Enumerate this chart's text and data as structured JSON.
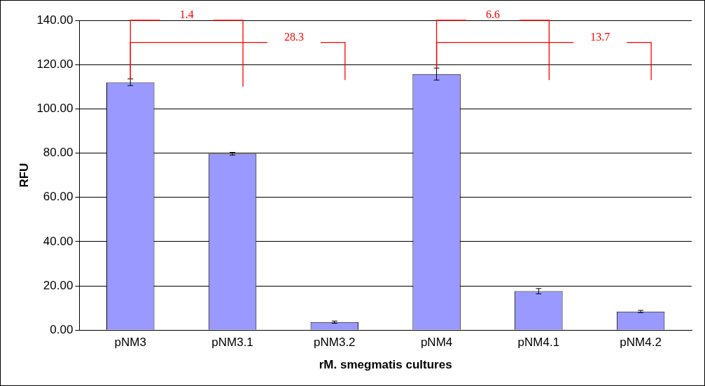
{
  "chart_data": {
    "type": "bar",
    "xlabel": "rM. smegmatis cultures",
    "ylabel": "RFU",
    "categories": [
      "pNM3",
      "pNM3.1",
      "pNM3.2",
      "pNM4",
      "pNM4.1",
      "pNM4.2"
    ],
    "values": [
      112,
      79.7,
      3.6,
      115.7,
      17.6,
      8.4
    ],
    "errors": [
      1.5,
      0.6,
      0.5,
      2.7,
      1.2,
      0.5
    ],
    "color": "#9999ff",
    "ylim": [
      0,
      140
    ],
    "yticks": [
      {
        "value": 0,
        "label": "0.00"
      },
      {
        "value": 20,
        "label": "20.00"
      },
      {
        "value": 40,
        "label": "40.00"
      },
      {
        "value": 60,
        "label": "60.00"
      },
      {
        "value": 80,
        "label": "80.00"
      },
      {
        "value": 100,
        "label": "100.00"
      },
      {
        "value": 120,
        "label": "120.00"
      },
      {
        "value": 140,
        "label": "140.00"
      }
    ],
    "grid": "y",
    "annotations": [
      "1.4",
      "28.3",
      "6.6",
      "13.7"
    ]
  }
}
